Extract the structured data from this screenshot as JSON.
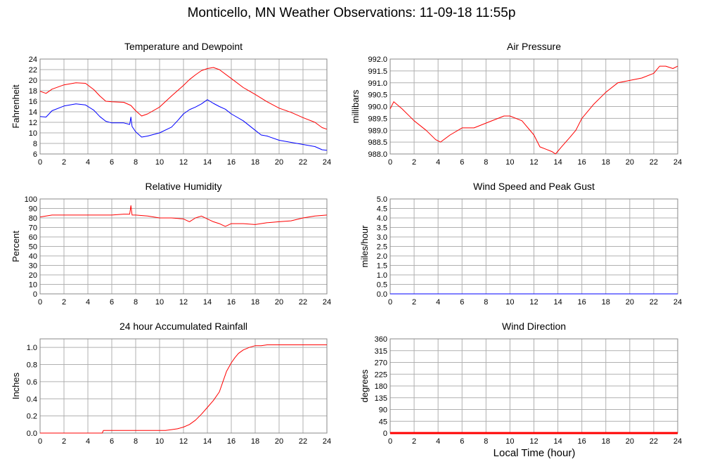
{
  "page": {
    "title": "Monticello, MN Weather Observations: 11-09-18 11:55p",
    "x_axis_title": "Local Time (hour)"
  },
  "colors": {
    "red": "#ff0000",
    "blue": "#0000ff",
    "grid": "#b0b0b0",
    "frame": "#888888"
  },
  "chart_data": [
    {
      "id": "temp",
      "type": "line",
      "title": "Temperature and Dewpoint",
      "ylabel": "Fahrenheit",
      "xlim": [
        0,
        24
      ],
      "ylim": [
        6,
        24
      ],
      "xticks": [
        0,
        2,
        4,
        6,
        8,
        10,
        12,
        14,
        16,
        18,
        20,
        22,
        24
      ],
      "yticks": [
        6,
        8,
        10,
        12,
        14,
        16,
        18,
        20,
        22,
        24
      ],
      "ytick_labels": [
        "6",
        "8",
        "10",
        "12",
        "14",
        "16",
        "18",
        "20",
        "22",
        "24"
      ],
      "grid": true,
      "series": [
        {
          "color": "#ff0000",
          "x": [
            0,
            0.5,
            1,
            2,
            3,
            3.8,
            4.5,
            5,
            5.5,
            6,
            7,
            7.6,
            8,
            8.5,
            9,
            10,
            11,
            11.5,
            12,
            12.5,
            13,
            13.5,
            14,
            14.5,
            15,
            16,
            17,
            18,
            19,
            20,
            21,
            22,
            23,
            23.6,
            24
          ],
          "y": [
            17.9,
            17.5,
            18.3,
            19.1,
            19.5,
            19.4,
            18.2,
            17.0,
            16.0,
            15.9,
            15.8,
            15.2,
            14.2,
            13.2,
            13.6,
            14.9,
            17.0,
            18.0,
            19.0,
            20.1,
            21.0,
            21.8,
            22.2,
            22.4,
            22.0,
            20.3,
            18.6,
            17.3,
            15.9,
            14.7,
            13.9,
            12.9,
            12.0,
            11.0,
            10.7
          ]
        },
        {
          "color": "#0000ff",
          "x": [
            0,
            0.5,
            1,
            2,
            3,
            3.8,
            4.5,
            5,
            5.5,
            6,
            7,
            7.5,
            7.6,
            7.7,
            8,
            8.5,
            9,
            10,
            11,
            11.5,
            12,
            12.5,
            13,
            13.5,
            14,
            14.5,
            15,
            15.5,
            16,
            17,
            18,
            18.5,
            19,
            20,
            21,
            22,
            23,
            23.6,
            24
          ],
          "y": [
            13.1,
            13.0,
            14.2,
            15.1,
            15.5,
            15.3,
            14.3,
            13.1,
            12.2,
            11.9,
            11.9,
            11.6,
            13.0,
            11.2,
            10.2,
            9.2,
            9.4,
            10.0,
            11.1,
            12.3,
            13.6,
            14.4,
            14.9,
            15.5,
            16.3,
            15.6,
            15.0,
            14.5,
            13.6,
            12.3,
            10.5,
            9.6,
            9.4,
            8.6,
            8.2,
            7.8,
            7.4,
            6.8,
            6.7
          ]
        }
      ]
    },
    {
      "id": "pressure",
      "type": "line",
      "title": "Air Pressure",
      "ylabel": "millibars",
      "xlim": [
        0,
        24
      ],
      "ylim": [
        988.0,
        992.0
      ],
      "xticks": [
        0,
        2,
        4,
        6,
        8,
        10,
        12,
        14,
        16,
        18,
        20,
        22,
        24
      ],
      "yticks": [
        988.0,
        988.5,
        989.0,
        989.5,
        990.0,
        990.5,
        991.0,
        991.5,
        992.0
      ],
      "ytick_labels": [
        "988.0",
        "988.5",
        "989.0",
        "989.5",
        "990.0",
        "990.5",
        "991.0",
        "991.5",
        "992.0"
      ],
      "grid": true,
      "series": [
        {
          "color": "#ff0000",
          "x": [
            0,
            0.3,
            1,
            2,
            3,
            3.8,
            4.2,
            5,
            6,
            7,
            8,
            9,
            9.5,
            10,
            11,
            12,
            12.5,
            13,
            13.5,
            13.8,
            14.3,
            15,
            15.5,
            16,
            17,
            18,
            19,
            20,
            21,
            22,
            22.5,
            23,
            23.6,
            24
          ],
          "y": [
            989.9,
            990.2,
            989.9,
            989.4,
            989.0,
            988.6,
            988.5,
            988.8,
            989.1,
            989.1,
            989.3,
            989.5,
            989.6,
            989.6,
            989.4,
            988.8,
            988.3,
            988.2,
            988.1,
            988.0,
            988.3,
            988.7,
            989.0,
            989.5,
            990.1,
            990.6,
            991.0,
            991.1,
            991.2,
            991.4,
            991.7,
            991.7,
            991.6,
            991.7
          ]
        }
      ]
    },
    {
      "id": "humidity",
      "type": "line",
      "title": "Relative Humidity",
      "ylabel": "Percent",
      "xlim": [
        0,
        24
      ],
      "ylim": [
        0,
        100
      ],
      "xticks": [
        0,
        2,
        4,
        6,
        8,
        10,
        12,
        14,
        16,
        18,
        20,
        22,
        24
      ],
      "yticks": [
        0,
        10,
        20,
        30,
        40,
        50,
        60,
        70,
        80,
        90,
        100
      ],
      "ytick_labels": [
        "0",
        "10",
        "20",
        "30",
        "40",
        "50",
        "60",
        "70",
        "80",
        "90",
        "100"
      ],
      "grid": true,
      "series": [
        {
          "color": "#ff0000",
          "x": [
            0,
            1,
            2,
            3,
            4,
            5,
            6,
            7,
            7.5,
            7.6,
            7.7,
            8,
            9,
            10,
            11,
            12,
            12.5,
            13,
            13.5,
            14,
            14.5,
            15,
            15.5,
            16,
            17,
            18,
            19,
            20,
            21,
            22,
            23,
            24
          ],
          "y": [
            81,
            83,
            83,
            83,
            83,
            83,
            83,
            84,
            84,
            93,
            83,
            83,
            82,
            80,
            80,
            79,
            76,
            80,
            82,
            79,
            76,
            74,
            71,
            74,
            74,
            73,
            75,
            76,
            77,
            80,
            82,
            83
          ]
        }
      ]
    },
    {
      "id": "wind",
      "type": "line",
      "title": "Wind Speed and Peak Gust",
      "ylabel": "miles/hour",
      "xlim": [
        0,
        24
      ],
      "ylim": [
        0,
        5
      ],
      "xticks": [
        0,
        2,
        4,
        6,
        8,
        10,
        12,
        14,
        16,
        18,
        20,
        22,
        24
      ],
      "yticks": [
        0,
        0.5,
        1,
        1.5,
        2,
        2.5,
        3,
        3.5,
        4,
        4.5,
        5
      ],
      "ytick_labels": [
        "0.0",
        "0.5",
        "1.0",
        "1.5",
        "2.0",
        "2.5",
        "3.0",
        "3.5",
        "4.0",
        "4.5",
        "5.0"
      ],
      "grid": true,
      "series": [
        {
          "color": "#ff0000",
          "x": [
            0,
            24
          ],
          "y": [
            0,
            0
          ]
        },
        {
          "color": "#0000ff",
          "x": [
            0,
            24
          ],
          "y": [
            0,
            0
          ]
        }
      ]
    },
    {
      "id": "rain",
      "type": "line",
      "title": "24 hour Accumulated Rainfall",
      "ylabel": "Inches",
      "xlim": [
        0,
        24
      ],
      "ylim": [
        0,
        1.1
      ],
      "xticks": [
        0,
        2,
        4,
        6,
        8,
        10,
        12,
        14,
        16,
        18,
        20,
        22,
        24
      ],
      "yticks": [
        0,
        0.2,
        0.4,
        0.6,
        0.8,
        1.0
      ],
      "ytick_labels": [
        "0.0",
        "0.2",
        "0.4",
        "0.6",
        "0.8",
        "1.0"
      ],
      "grid": true,
      "series": [
        {
          "color": "#ff0000",
          "x": [
            0,
            5.2,
            5.3,
            10.5,
            11,
            11.5,
            12,
            12.5,
            13,
            13.5,
            14,
            14.5,
            15,
            15.3,
            15.6,
            16,
            16.3,
            16.6,
            17,
            17.5,
            18,
            18.5,
            19,
            24
          ],
          "y": [
            0,
            0,
            0.03,
            0.03,
            0.04,
            0.05,
            0.07,
            0.1,
            0.15,
            0.22,
            0.3,
            0.38,
            0.48,
            0.6,
            0.72,
            0.82,
            0.88,
            0.93,
            0.97,
            1.0,
            1.02,
            1.02,
            1.03,
            1.03
          ]
        }
      ]
    },
    {
      "id": "direction",
      "type": "line",
      "title": "Wind Direction",
      "ylabel": "degrees",
      "xlim": [
        0,
        24
      ],
      "ylim": [
        0,
        360
      ],
      "xticks": [
        0,
        2,
        4,
        6,
        8,
        10,
        12,
        14,
        16,
        18,
        20,
        22,
        24
      ],
      "yticks": [
        0,
        45,
        90,
        135,
        180,
        225,
        270,
        315,
        360
      ],
      "ytick_labels": [
        "0",
        "45",
        "90",
        "135",
        "180",
        "225",
        "270",
        "315",
        "360"
      ],
      "grid": true,
      "series": [
        {
          "color": "#ff0000",
          "thick": true,
          "x": [
            0,
            24
          ],
          "y": [
            0,
            0
          ]
        }
      ]
    }
  ]
}
